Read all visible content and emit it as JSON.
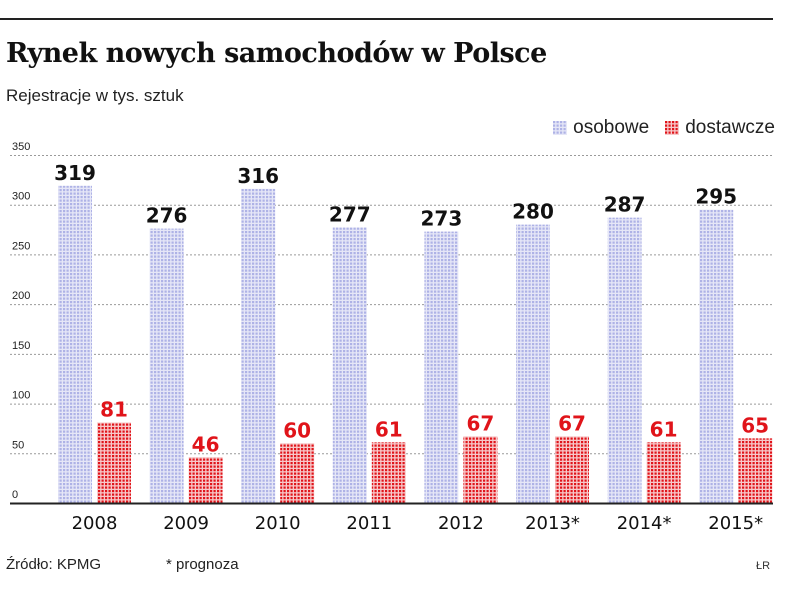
{
  "title": "Rynek nowych samochodów w Polsce",
  "subtitle": "Rejestracje w tys. sztuk",
  "source": "Źródło: KPMG",
  "note": "* prognoza",
  "author": "ŁR",
  "colors": {
    "osobowe": "#b9bcea",
    "dostawcze": "#e0141a",
    "dostawcze_label": "#e0141a",
    "osobowe_label": "#111111"
  },
  "chart_data": {
    "type": "bar",
    "title": "Rynek nowych samochodów w Polsce",
    "subtitle": "Rejestracje w tys. sztuk",
    "categories": [
      "2008",
      "2009",
      "2010",
      "2011",
      "2012",
      "2013*",
      "2014*",
      "2015*"
    ],
    "series": [
      {
        "name": "osobowe",
        "values": [
          319,
          276,
          316,
          277,
          273,
          280,
          287,
          295
        ]
      },
      {
        "name": "dostawcze",
        "values": [
          81,
          46,
          60,
          61,
          67,
          67,
          61,
          65
        ]
      }
    ],
    "yticks": [
      0,
      50,
      100,
      150,
      200,
      250,
      300,
      350
    ],
    "ylim": [
      0,
      350
    ],
    "grid": true,
    "legend": "top-right"
  }
}
